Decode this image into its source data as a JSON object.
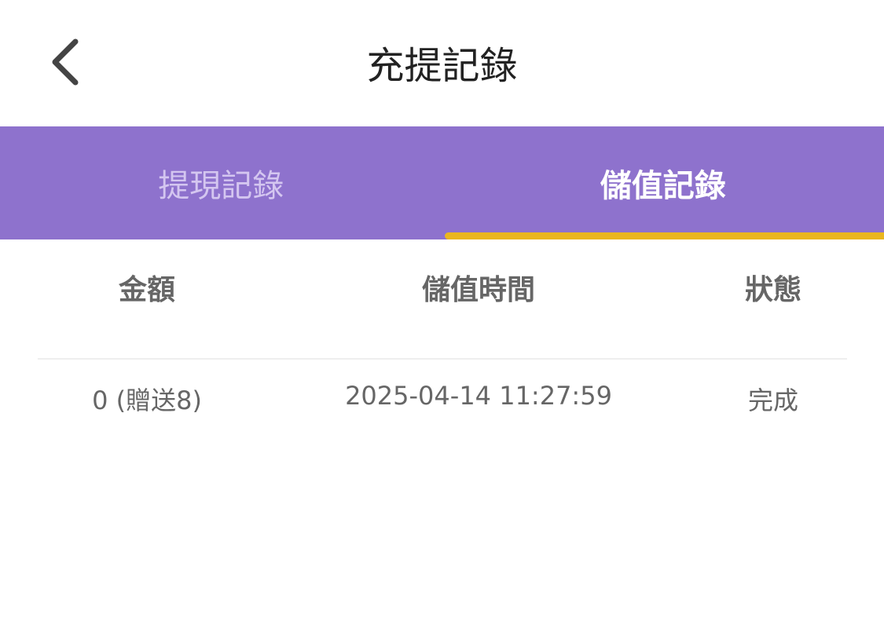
{
  "header": {
    "title": "充提記錄",
    "back_icon": "chevron-left-icon"
  },
  "tabs": [
    {
      "label": "提現記錄",
      "active": false
    },
    {
      "label": "儲值記錄",
      "active": true
    }
  ],
  "colors": {
    "tab_bar": "#8e72cd",
    "active_indicator": "#eab61f"
  },
  "table": {
    "columns": [
      "金額",
      "儲值時間",
      "狀態"
    ],
    "rows": [
      [
        "0 (贈送8)",
        "2025-04-14 11:27:59",
        "完成"
      ]
    ]
  }
}
